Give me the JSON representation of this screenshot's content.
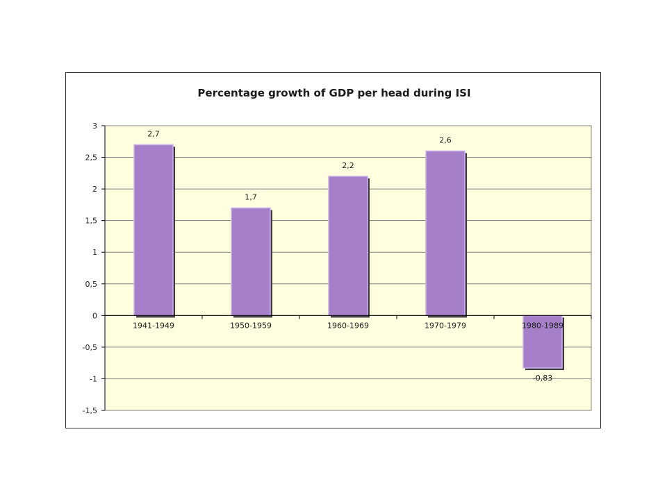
{
  "chart_data": {
    "type": "bar",
    "title": "Percentage growth  of GDP per head during ISI",
    "xlabel": "",
    "ylabel": "",
    "categories": [
      "1941-1949",
      "1950-1959",
      "1960-1969",
      "1970-1979",
      "1980-1989"
    ],
    "values": [
      2.7,
      1.7,
      2.2,
      2.6,
      -0.83
    ],
    "data_labels": [
      "2,7",
      "1,7",
      "2,2",
      "2,6",
      "-0,83"
    ],
    "ylim": [
      -1.5,
      3
    ],
    "yticks": [
      3,
      2.5,
      2,
      1.5,
      1,
      0.5,
      0,
      -0.5,
      -1,
      -1.5
    ],
    "ytick_labels": [
      "3",
      "2,5",
      "2",
      "1,5",
      "1",
      "0,5",
      "0",
      "-0,5",
      "-1",
      "-1,5"
    ],
    "grid": true,
    "legend": "none",
    "colors": {
      "plot_background": "#FFFFE0",
      "bar_fill": "#A57FC8",
      "bar_highlight": "#CDB4EC",
      "bar_shadow": "#3A3A3A",
      "gridline": "#808080"
    }
  }
}
